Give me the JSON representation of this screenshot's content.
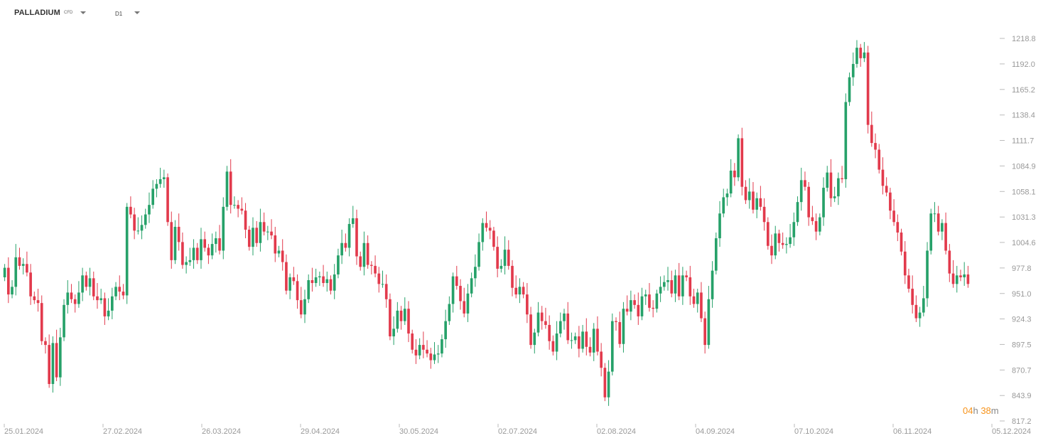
{
  "header": {
    "symbol": "PALLADIUM",
    "symbol_type": "CFD",
    "timeframe": "D1"
  },
  "countdown": {
    "hours": "04",
    "h": "h",
    "minutes": "38",
    "m": "m"
  },
  "colors": {
    "up": "#26a169",
    "down": "#e23a4c",
    "up_wick": "#26a169",
    "down_wick": "#e23a4c",
    "axis_text": "#999999"
  },
  "chart_data": {
    "type": "candlestick",
    "ylim": [
      817.2,
      1225
    ],
    "yticks": [
      "817.2",
      "843.9",
      "870.7",
      "897.5",
      "924.3",
      "951.0",
      "977.8",
      "1004.6",
      "1031.3",
      "1058.1",
      "1084.9",
      "1111.7",
      "1138.4",
      "1165.2",
      "1192.0",
      "1218.8"
    ],
    "xticks": [
      "25.01.2024",
      "27.02.2024",
      "26.03.2024",
      "29.04.2024",
      "30.05.2024",
      "02.07.2024",
      "02.08.2024",
      "04.09.2024",
      "07.10.2024",
      "06.11.2024",
      "05.12.2024"
    ],
    "candles": [
      [
        1,
        978
      ],
      [
        2,
        950
      ],
      [
        3,
        958
      ],
      [
        4,
        989
      ],
      [
        5,
        980
      ],
      [
        6,
        982
      ],
      [
        7,
        973
      ],
      [
        8,
        948
      ],
      [
        9,
        944
      ],
      [
        10,
        941
      ],
      [
        11,
        901
      ],
      [
        12,
        897
      ],
      [
        13,
        856
      ],
      [
        14,
        899
      ],
      [
        15,
        863
      ],
      [
        16,
        905
      ],
      [
        17,
        939
      ],
      [
        18,
        952
      ],
      [
        19,
        945
      ],
      [
        20,
        940
      ],
      [
        21,
        952
      ],
      [
        22,
        970
      ],
      [
        23,
        958
      ],
      [
        24,
        967
      ],
      [
        25,
        948
      ],
      [
        26,
        944
      ],
      [
        27,
        946
      ],
      [
        28,
        927
      ],
      [
        29,
        933
      ],
      [
        30,
        948
      ],
      [
        31,
        958
      ],
      [
        32,
        953
      ],
      [
        33,
        949
      ],
      [
        34,
        1042
      ],
      [
        35,
        1034
      ],
      [
        36,
        1017
      ],
      [
        37,
        1017
      ],
      [
        38,
        1023
      ],
      [
        39,
        1034
      ],
      [
        40,
        1044
      ],
      [
        41,
        1061
      ],
      [
        42,
        1066
      ],
      [
        43,
        1071
      ],
      [
        44,
        1073
      ],
      [
        45,
        1026
      ],
      [
        46,
        986
      ],
      [
        47,
        1021
      ],
      [
        48,
        1005
      ],
      [
        49,
        981
      ],
      [
        50,
        984
      ],
      [
        51,
        986
      ],
      [
        52,
        999
      ],
      [
        53,
        986
      ],
      [
        54,
        1008
      ],
      [
        55,
        999
      ],
      [
        56,
        991
      ],
      [
        57,
        1003
      ],
      [
        58,
        1009
      ],
      [
        59,
        996
      ],
      [
        60,
        1042
      ],
      [
        61,
        1079
      ],
      [
        62,
        1044
      ],
      [
        63,
        1044
      ],
      [
        64,
        1040
      ],
      [
        65,
        1038
      ],
      [
        66,
        1018
      ],
      [
        67,
        1000
      ],
      [
        68,
        1020
      ],
      [
        69,
        1004
      ],
      [
        70,
        1026
      ],
      [
        71,
        1016
      ],
      [
        72,
        1016
      ],
      [
        73,
        1012
      ],
      [
        74,
        993
      ],
      [
        75,
        996
      ],
      [
        76,
        984
      ],
      [
        77,
        954
      ],
      [
        78,
        968
      ],
      [
        79,
        964
      ],
      [
        80,
        944
      ],
      [
        81,
        929
      ],
      [
        82,
        945
      ],
      [
        83,
        965
      ],
      [
        84,
        962
      ],
      [
        85,
        968
      ],
      [
        86,
        969
      ],
      [
        87,
        962
      ],
      [
        88,
        966
      ],
      [
        89,
        954
      ],
      [
        90,
        971
      ],
      [
        91,
        991
      ],
      [
        92,
        1004
      ],
      [
        93,
        999
      ],
      [
        94,
        1024
      ],
      [
        95,
        1030
      ],
      [
        96,
        990
      ],
      [
        97,
        979
      ],
      [
        98,
        1004
      ],
      [
        99,
        981
      ],
      [
        100,
        980
      ],
      [
        101,
        972
      ],
      [
        102,
        961
      ],
      [
        103,
        961
      ],
      [
        104,
        945
      ],
      [
        105,
        906
      ],
      [
        106,
        914
      ],
      [
        107,
        933
      ],
      [
        108,
        922
      ],
      [
        109,
        935
      ],
      [
        110,
        909
      ],
      [
        111,
        892
      ],
      [
        112,
        886
      ],
      [
        113,
        897
      ],
      [
        114,
        892
      ],
      [
        115,
        888
      ],
      [
        116,
        881
      ],
      [
        117,
        887
      ],
      [
        118,
        888
      ],
      [
        119,
        903
      ],
      [
        120,
        922
      ],
      [
        121,
        940
      ],
      [
        122,
        969
      ],
      [
        123,
        959
      ],
      [
        124,
        943
      ],
      [
        125,
        930
      ],
      [
        126,
        951
      ],
      [
        127,
        967
      ],
      [
        128,
        979
      ],
      [
        129,
        1005
      ],
      [
        130,
        1025
      ],
      [
        131,
        1020
      ],
      [
        132,
        1017
      ],
      [
        133,
        1000
      ],
      [
        134,
        977
      ],
      [
        135,
        980
      ],
      [
        136,
        997
      ],
      [
        137,
        980
      ],
      [
        138,
        957
      ],
      [
        139,
        950
      ],
      [
        140,
        958
      ],
      [
        141,
        950
      ],
      [
        142,
        929
      ],
      [
        143,
        897
      ],
      [
        144,
        910
      ],
      [
        145,
        931
      ],
      [
        146,
        922
      ],
      [
        147,
        918
      ],
      [
        148,
        901
      ],
      [
        149,
        890
      ],
      [
        150,
        909
      ],
      [
        151,
        922
      ],
      [
        152,
        930
      ],
      [
        153,
        902
      ],
      [
        154,
        902
      ],
      [
        155,
        906
      ],
      [
        156,
        893
      ],
      [
        157,
        911
      ],
      [
        158,
        895
      ],
      [
        159,
        889
      ],
      [
        160,
        914
      ],
      [
        161,
        890
      ],
      [
        162,
        873
      ],
      [
        163,
        842
      ],
      [
        164,
        869
      ],
      [
        165,
        922
      ],
      [
        166,
        921
      ],
      [
        167,
        898
      ],
      [
        168,
        935
      ],
      [
        169,
        932
      ],
      [
        170,
        944
      ],
      [
        171,
        939
      ],
      [
        172,
        927
      ],
      [
        173,
        948
      ],
      [
        174,
        950
      ],
      [
        175,
        936
      ],
      [
        176,
        935
      ],
      [
        177,
        951
      ],
      [
        178,
        958
      ],
      [
        179,
        963
      ],
      [
        180,
        965
      ],
      [
        181,
        951
      ],
      [
        182,
        970
      ],
      [
        183,
        948
      ],
      [
        184,
        970
      ],
      [
        185,
        968
      ],
      [
        186,
        948
      ],
      [
        187,
        940
      ],
      [
        188,
        952
      ],
      [
        189,
        925
      ],
      [
        190,
        897
      ],
      [
        191,
        945
      ],
      [
        192,
        975
      ],
      [
        193,
        1009
      ],
      [
        194,
        1035
      ],
      [
        195,
        1052
      ],
      [
        196,
        1056
      ],
      [
        197,
        1080
      ],
      [
        198,
        1073
      ],
      [
        199,
        1114
      ],
      [
        200,
        1063
      ],
      [
        201,
        1049
      ],
      [
        202,
        1058
      ],
      [
        203,
        1039
      ],
      [
        204,
        1051
      ],
      [
        205,
        1042
      ],
      [
        206,
        1026
      ],
      [
        207,
        1001
      ],
      [
        208,
        991
      ],
      [
        209,
        1014
      ],
      [
        210,
        1004
      ],
      [
        211,
        1002
      ],
      [
        212,
        1003
      ],
      [
        213,
        1010
      ],
      [
        214,
        1026
      ],
      [
        215,
        1047
      ],
      [
        216,
        1070
      ],
      [
        217,
        1063
      ],
      [
        218,
        1031
      ],
      [
        219,
        1027
      ],
      [
        220,
        1016
      ],
      [
        221,
        1031
      ],
      [
        222,
        1062
      ],
      [
        223,
        1078
      ],
      [
        224,
        1051
      ],
      [
        225,
        1053
      ],
      [
        226,
        1072
      ],
      [
        227,
        1071
      ],
      [
        228,
        1152
      ],
      [
        229,
        1178
      ],
      [
        230,
        1192
      ],
      [
        231,
        1209
      ],
      [
        232,
        1198
      ],
      [
        233,
        1204
      ],
      [
        234,
        1128
      ],
      [
        235,
        1109
      ],
      [
        236,
        1102
      ],
      [
        237,
        1081
      ],
      [
        238,
        1064
      ],
      [
        239,
        1057
      ],
      [
        240,
        1038
      ],
      [
        241,
        1026
      ],
      [
        242,
        1015
      ],
      [
        243,
        995
      ],
      [
        244,
        970
      ],
      [
        245,
        956
      ],
      [
        246,
        939
      ],
      [
        247,
        925
      ],
      [
        248,
        931
      ],
      [
        249,
        946
      ],
      [
        250,
        996
      ],
      [
        251,
        1035
      ],
      [
        252,
        1035
      ],
      [
        253,
        1016
      ],
      [
        254,
        1025
      ],
      [
        255,
        996
      ],
      [
        256,
        972
      ],
      [
        257,
        961
      ],
      [
        258,
        970
      ],
      [
        259,
        968
      ],
      [
        260,
        971
      ],
      [
        261,
        961
      ]
    ]
  }
}
